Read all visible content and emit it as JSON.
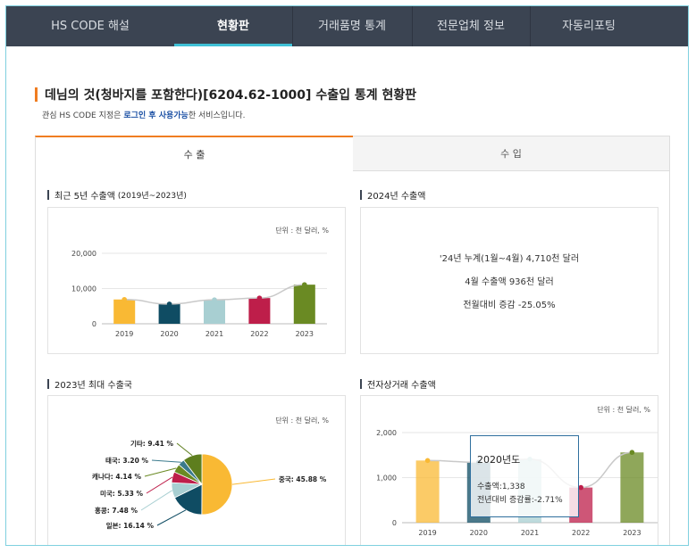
{
  "nav": {
    "items": [
      {
        "label": "HS CODE 해설",
        "active": false
      },
      {
        "label": "현황판",
        "active": true
      },
      {
        "label": "거래품명 통계",
        "active": false
      },
      {
        "label": "전문업체 정보",
        "active": false
      },
      {
        "label": "자동리포팅",
        "active": false
      }
    ]
  },
  "page": {
    "title": "데님의 것(청바지를 포함한다)[6204.62-1000] 수출입 통계 현황판",
    "notice_prefix": "관심 HS CODE 지정은 ",
    "notice_bold": "로그인 후 사용가능",
    "notice_suffix": "한 서비스입니다."
  },
  "tabs": {
    "export_label": "수 출",
    "import_label": "수 입",
    "active": "export"
  },
  "sections": {
    "five_year": {
      "title": "최근 5년 수출액",
      "subtitle": "(2019년~2023년)",
      "unit": "단위 : 천 달러, %"
    },
    "ytd": {
      "title": "2024년 수출액"
    },
    "top_country": {
      "title": "2023년 최대 수출국",
      "unit": "단위 : 천 달러, %"
    },
    "ecommerce": {
      "title": "전자상거래 수출액",
      "unit": "단위 : 천 달러, %"
    }
  },
  "ytd_stats": {
    "line1": "'24년 누계(1월~4월) 4,710천 달러",
    "line2": "4월 수출액 936천 달러",
    "line3": "전월대비 증감 -25.05%"
  },
  "tooltip": {
    "title": "2020년도",
    "line1": "수출액:1,338",
    "line2": "전년대비 증감률:-2.71%"
  },
  "colors": {
    "accent": "#f07d21",
    "nav_bg": "#3b4452",
    "nav_active": "#3fc0d6",
    "bars": [
      "#f9b934",
      "#0f4c63",
      "#a8cfd2",
      "#be1e4a",
      "#6a8a23"
    ]
  },
  "chart_data": [
    {
      "type": "bar",
      "title": "최근 5년 수출액",
      "categories": [
        "2019",
        "2020",
        "2021",
        "2022",
        "2023"
      ],
      "values": [
        6900,
        5600,
        6800,
        7300,
        11100
      ],
      "y_ticks": [
        "20,000",
        "10,000",
        "0"
      ],
      "ylim": [
        0,
        20000
      ],
      "line_overlay": true
    },
    {
      "type": "pie",
      "title": "2023년 최대 수출국",
      "slices": [
        {
          "label": "중국: 45.88 %",
          "value": 45.88,
          "color": "#f9b934"
        },
        {
          "label": "일본: 16.14 %",
          "value": 16.14,
          "color": "#0f4c63"
        },
        {
          "label": "홍콩: 7.48 %",
          "value": 7.48,
          "color": "#a8cfd2"
        },
        {
          "label": "미국: 5.33 %",
          "value": 5.33,
          "color": "#be1e4a"
        },
        {
          "label": "캐나다: 4.14 %",
          "value": 4.14,
          "color": "#6a8a23"
        },
        {
          "label": "태국: 3.20 %",
          "value": 3.2,
          "color": "#3a7a8c"
        },
        {
          "label": "기타: 9.41 %",
          "value": 9.41,
          "color": "#5e7e1e"
        }
      ]
    },
    {
      "type": "bar",
      "title": "전자상거래 수출액",
      "categories": [
        "2019",
        "2020",
        "2021",
        "2022",
        "2023"
      ],
      "values": [
        1380,
        1338,
        1410,
        780,
        1560
      ],
      "y_ticks": [
        "2,000",
        "1,000",
        "0"
      ],
      "ylim": [
        0,
        2000
      ],
      "line_overlay": true
    }
  ]
}
